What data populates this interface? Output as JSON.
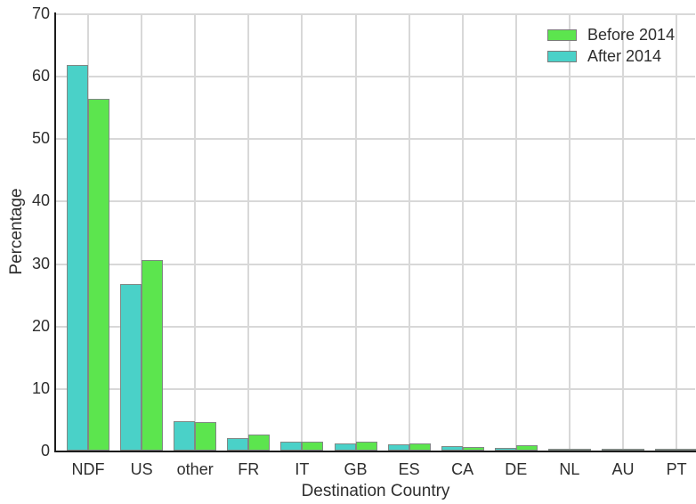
{
  "figure": {
    "background": "#ffffff"
  },
  "chart_data": {
    "type": "bar",
    "title": "",
    "xlabel": "Destination Country",
    "ylabel": "Percentage",
    "categories": [
      "NDF",
      "US",
      "other",
      "FR",
      "IT",
      "GB",
      "ES",
      "CA",
      "DE",
      "NL",
      "AU",
      "PT"
    ],
    "series": [
      {
        "name": "After 2014",
        "color": "#4ad1c8",
        "values": [
          61.8,
          26.7,
          4.7,
          2.0,
          1.4,
          1.1,
          1.0,
          0.7,
          0.4,
          0.35,
          0.25,
          0.1
        ]
      },
      {
        "name": "Before 2014",
        "color": "#5ce54e",
        "values": [
          56.3,
          30.5,
          4.6,
          2.6,
          1.4,
          1.4,
          1.1,
          0.55,
          0.8,
          0.35,
          0.3,
          0.15
        ]
      }
    ],
    "legend": {
      "position": "upper right",
      "entries": [
        {
          "label": "Before 2014",
          "color": "#5ce54e"
        },
        {
          "label": "After 2014",
          "color": "#4ad1c8"
        }
      ]
    },
    "ylim": [
      0,
      70
    ],
    "yticks": [
      0,
      10,
      20,
      30,
      40,
      50,
      60,
      70
    ],
    "grid": true,
    "colors": {
      "bar_edge": "#808884",
      "gridline": "#d8d8d8",
      "spine": "#1c1c1c",
      "text": "#2e2e2e"
    }
  }
}
